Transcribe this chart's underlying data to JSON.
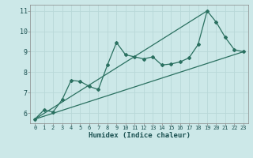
{
  "xlabel": "Humidex (Indice chaleur)",
  "bg_color": "#cce8e8",
  "line_color": "#2a7060",
  "grid_color": "#b8d8d8",
  "xlim": [
    -0.5,
    23.5
  ],
  "ylim": [
    5.5,
    11.3
  ],
  "yticks": [
    6,
    7,
    8,
    9,
    10,
    11
  ],
  "xticks": [
    0,
    1,
    2,
    3,
    4,
    5,
    6,
    7,
    8,
    9,
    10,
    11,
    12,
    13,
    14,
    15,
    16,
    17,
    18,
    19,
    20,
    21,
    22,
    23
  ],
  "line1_x": [
    0,
    1,
    2,
    3,
    4,
    5,
    6,
    7,
    8,
    9,
    10,
    11,
    12,
    13,
    14,
    15,
    16,
    17,
    18,
    19,
    20,
    21,
    22,
    23
  ],
  "line1_y": [
    5.7,
    6.15,
    6.05,
    6.65,
    7.6,
    7.55,
    7.3,
    7.15,
    8.35,
    9.45,
    8.85,
    8.75,
    8.65,
    8.75,
    8.35,
    8.4,
    8.5,
    8.7,
    9.35,
    11.0,
    10.45,
    9.7,
    9.1,
    9.0
  ],
  "line2_x": [
    0,
    23
  ],
  "line2_y": [
    5.7,
    9.0
  ],
  "line3_x": [
    0,
    19
  ],
  "line3_y": [
    5.7,
    11.0
  ]
}
